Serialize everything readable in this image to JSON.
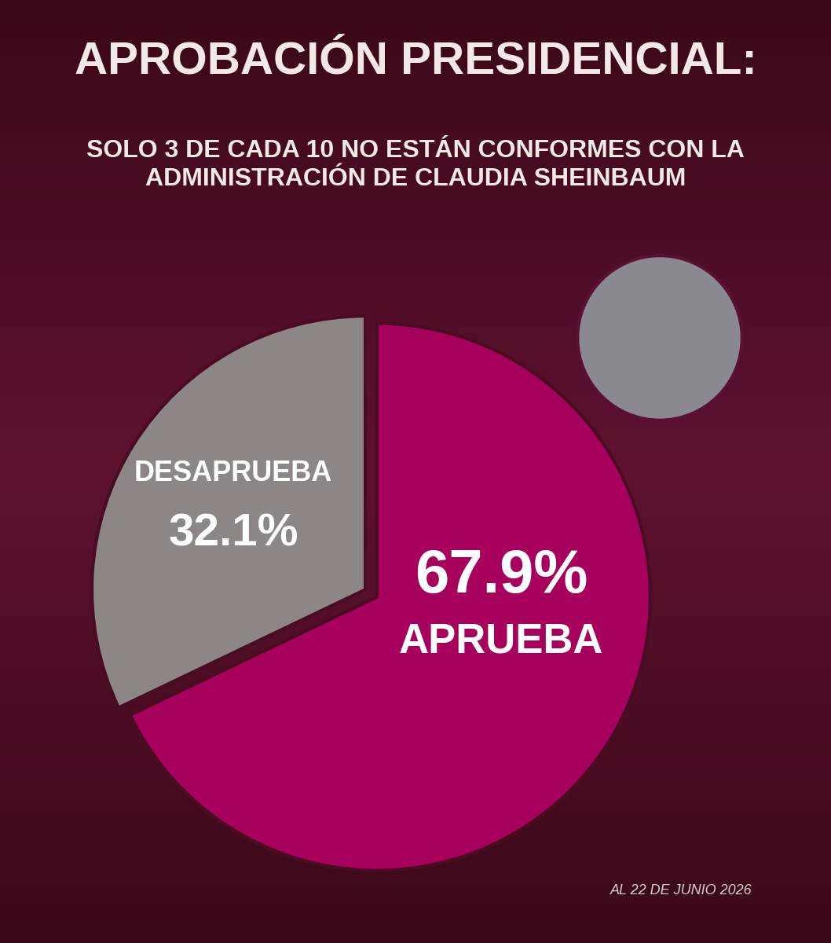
{
  "chart_data": {
    "type": "pie",
    "title": "APROBACIÓN PRESIDENCIAL:",
    "subtitle": "SOLO 3 DE CADA 10 NO ESTÁN CONFORMES CON LA ADMINISTRACIÓN DE CLAUDIA SHEINBAUM",
    "categories": [
      "DESAPRUEBA",
      "APRUEBA"
    ],
    "values": [
      32.1,
      67.9
    ],
    "value_labels": [
      "32.1%",
      "67.9%"
    ],
    "colors": [
      "#8c8687",
      "#a6005c"
    ],
    "data_labels": true,
    "annotations": [
      "AL 22 DE JUNIO 2026"
    ]
  }
}
